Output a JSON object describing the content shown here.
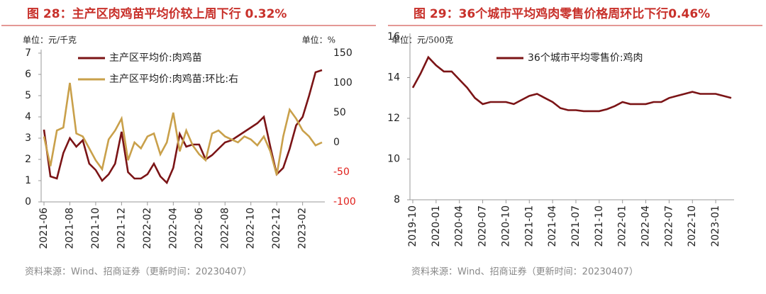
{
  "chart_data": [
    {
      "type": "line",
      "title": "图 28：主产区肉鸡苗平均价较上周下行 0.32%",
      "y_unit": "单位：元/千克",
      "y2_unit": "单位：%",
      "source": "资料来源：Wind、招商证券（更新时间：20230407）",
      "categories": [
        "2021-06",
        null,
        null,
        null,
        "2021-08",
        null,
        null,
        null,
        "2021-10",
        null,
        null,
        null,
        "2021-12",
        null,
        null,
        null,
        "2022-02",
        null,
        null,
        null,
        "2022-04",
        null,
        null,
        null,
        "2022-06",
        null,
        null,
        null,
        "2022-08",
        null,
        null,
        null,
        "2022-10",
        null,
        null,
        null,
        "2022-12",
        null,
        null,
        null,
        "2023-02",
        null,
        null,
        null
      ],
      "series": [
        {
          "name": "主产区平均价:肉鸡苗",
          "color": "#7b1416",
          "values": [
            3.4,
            1.2,
            1.1,
            2.3,
            3.0,
            2.6,
            2.9,
            1.8,
            1.5,
            1.0,
            1.3,
            1.8,
            3.3,
            1.4,
            1.1,
            1.1,
            1.3,
            1.8,
            1.2,
            0.9,
            1.6,
            3.2,
            2.6,
            2.7,
            2.7,
            2.0,
            2.2,
            2.5,
            2.8,
            2.9,
            3.1,
            3.3,
            3.5,
            3.7,
            4.0,
            2.6,
            1.3,
            1.6,
            2.5,
            3.6,
            4.0,
            5.0,
            6.1,
            6.2
          ]
        },
        {
          "name": "主产区平均价:肉鸡苗:环比:右",
          "color": "#c9a04a",
          "axis": "y2",
          "values": [
            10,
            -40,
            20,
            25,
            100,
            15,
            10,
            -10,
            -30,
            -45,
            5,
            20,
            40,
            -30,
            0,
            -10,
            10,
            15,
            -20,
            0,
            50,
            -15,
            20,
            -5,
            -20,
            -30,
            15,
            20,
            10,
            5,
            0,
            10,
            5,
            -5,
            10,
            -15,
            -55,
            10,
            55,
            40,
            20,
            10,
            -5,
            0
          ]
        }
      ],
      "ylim": [
        0,
        7
      ],
      "yticks": [
        0,
        1,
        2,
        3,
        4,
        5,
        6,
        7
      ],
      "y2lim": [
        -100,
        150
      ],
      "y2ticks": [
        -100,
        -50,
        0,
        50,
        100,
        150
      ],
      "y2_negative_color": "#e0201b",
      "legend": "top-left",
      "grid": false
    },
    {
      "type": "line",
      "title": "图 29：36个城市平均鸡肉零售价格周环比下行0.46%",
      "y_unit": "单位：元/500克",
      "source": "资料来源：Wind、招商证券（更新时间：20230407）",
      "categories": [
        "2019-10",
        null,
        null,
        "2020-01",
        null,
        null,
        "2020-04",
        null,
        null,
        "2020-07",
        null,
        null,
        "2020-10",
        null,
        null,
        "2021-01",
        null,
        null,
        "2021-04",
        null,
        null,
        "2021-07",
        null,
        null,
        "2021-10",
        null,
        null,
        "2022-01",
        null,
        null,
        "2022-04",
        null,
        null,
        "2022-07",
        null,
        null,
        "2022-10",
        null,
        null,
        "2023-01",
        null,
        null
      ],
      "series": [
        {
          "name": "36个城市平均零售价:鸡肉",
          "color": "#7b1416",
          "values": [
            13.5,
            14.2,
            15.0,
            14.6,
            14.3,
            14.3,
            13.9,
            13.5,
            13.0,
            12.7,
            12.8,
            12.8,
            12.8,
            12.7,
            12.9,
            13.1,
            13.2,
            13.0,
            12.8,
            12.5,
            12.4,
            12.4,
            12.35,
            12.35,
            12.35,
            12.45,
            12.6,
            12.8,
            12.7,
            12.7,
            12.7,
            12.8,
            12.8,
            13.0,
            13.1,
            13.2,
            13.3,
            13.2,
            13.2,
            13.2,
            13.1,
            13.0
          ]
        }
      ],
      "ylim": [
        8,
        16
      ],
      "yticks": [
        8,
        10,
        12,
        14,
        16
      ],
      "legend": "top-center",
      "grid": false
    }
  ]
}
